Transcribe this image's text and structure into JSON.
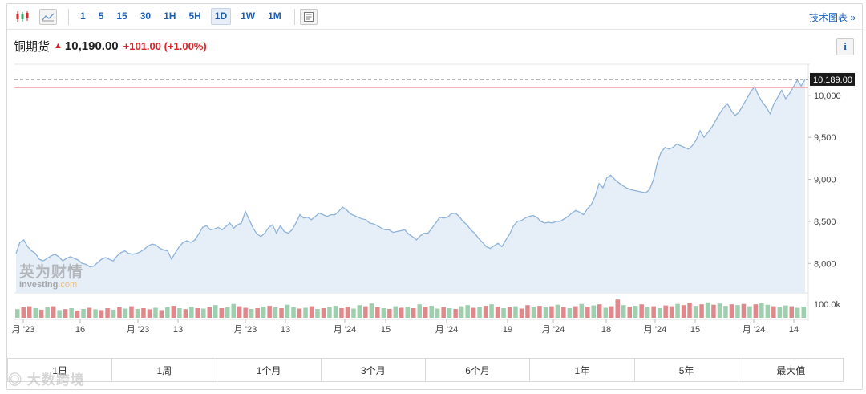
{
  "toolbar": {
    "chart_type_icons": [
      "candlestick-icon",
      "area-chart-icon"
    ],
    "periods": [
      "1",
      "5",
      "15",
      "30",
      "1H",
      "5H",
      "1D",
      "1W",
      "1M"
    ],
    "active_period": "1D",
    "doc_icon": "document-icon",
    "tech_chart_label": "技术图表 »"
  },
  "header": {
    "name": "铜期货",
    "price": "10,190.00",
    "change": "+101.00",
    "change_pct": "(+1.00%)",
    "direction_icon": "up-arrow-icon",
    "info_label": "i"
  },
  "watermark": {
    "cn": "英为财情",
    "en_main": "Investing",
    "en_suffix": ".com"
  },
  "ranges": [
    "1日",
    "1周",
    "1个月",
    "3个月",
    "6个月",
    "1年",
    "5年",
    "最大值"
  ],
  "corner_watermark": "大数跨境",
  "colors": {
    "line": "#8fb3d9",
    "area": "#e6eef8",
    "up_volume": "#e0898c",
    "down_volume": "#9ecfae",
    "last_price_box": "#1a1a1a",
    "accent": "#1b5fb5",
    "change": "#d8262b"
  },
  "chart_data": {
    "type": "area",
    "title": "",
    "y_axis": {
      "ticks": [
        "8,000",
        "8,500",
        "9,000",
        "9,500",
        "10,000"
      ],
      "tick_values": [
        8000,
        8500,
        9000,
        9500,
        10000
      ],
      "range": [
        7650,
        10370
      ],
      "position": "right"
    },
    "x_axis": {
      "labels": [
        "月 '23",
        "16",
        "月 '23",
        "13",
        "月 '23",
        "13",
        "月 '24",
        "15",
        "月 '24",
        "19",
        "月 '24",
        "18",
        "月 '24",
        "15",
        "月 '24",
        "14"
      ]
    },
    "last_price_label": "10,189.00",
    "last_price": 10189,
    "reference_line": 10090,
    "volume_label": "100.0k",
    "series": [
      {
        "values": [
          8120,
          8250,
          8280,
          8200,
          8150,
          8120,
          8050,
          8030,
          8060,
          8090,
          8110,
          8080,
          8030,
          8060,
          8080,
          8060,
          8040,
          8000,
          7990,
          7960,
          7970,
          8010,
          8050,
          8070,
          8050,
          8030,
          8090,
          8130,
          8150,
          8120,
          8110,
          8120,
          8140,
          8170,
          8210,
          8230,
          8220,
          8180,
          8160,
          8150,
          8050,
          8130,
          8200,
          8250,
          8270,
          8250,
          8280,
          8350,
          8430,
          8450,
          8400,
          8410,
          8430,
          8400,
          8440,
          8480,
          8420,
          8460,
          8480,
          8620,
          8520,
          8420,
          8350,
          8320,
          8360,
          8430,
          8460,
          8360,
          8450,
          8380,
          8360,
          8400,
          8480,
          8580,
          8540,
          8550,
          8520,
          8560,
          8600,
          8580,
          8560,
          8580,
          8580,
          8620,
          8670,
          8640,
          8590,
          8570,
          8550,
          8530,
          8520,
          8480,
          8470,
          8450,
          8420,
          8400,
          8400,
          8370,
          8380,
          8390,
          8400,
          8350,
          8320,
          8280,
          8330,
          8360,
          8360,
          8420,
          8480,
          8550,
          8540,
          8550,
          8590,
          8600,
          8560,
          8500,
          8460,
          8400,
          8360,
          8300,
          8250,
          8200,
          8180,
          8210,
          8240,
          8200,
          8280,
          8350,
          8450,
          8500,
          8510,
          8540,
          8560,
          8570,
          8550,
          8500,
          8480,
          8490,
          8480,
          8500,
          8500,
          8530,
          8560,
          8600,
          8630,
          8610,
          8580,
          8650,
          8700,
          8800,
          8950,
          8900,
          9020,
          9050,
          9000,
          8960,
          8930,
          8900,
          8880,
          8870,
          8860,
          8850,
          8840,
          8880,
          9000,
          9200,
          9330,
          9380,
          9360,
          9380,
          9420,
          9400,
          9380,
          9360,
          9400,
          9470,
          9580,
          9500,
          9560,
          9620,
          9700,
          9780,
          9850,
          9900,
          9820,
          9760,
          9800,
          9880,
          9960,
          10040,
          10100,
          10000,
          9920,
          9860,
          9780,
          9900,
          9980,
          10060,
          9960,
          10020,
          10100,
          10180,
          10110,
          10189
        ]
      }
    ],
    "volume": [
      {
        "v": 0.45,
        "up": false
      },
      {
        "v": 0.55,
        "up": true
      },
      {
        "v": 0.6,
        "up": true
      },
      {
        "v": 0.5,
        "up": false
      },
      {
        "v": 0.42,
        "up": true
      },
      {
        "v": 0.55,
        "up": false
      },
      {
        "v": 0.6,
        "up": true
      },
      {
        "v": 0.4,
        "up": false
      },
      {
        "v": 0.45,
        "up": true
      },
      {
        "v": 0.5,
        "up": false
      },
      {
        "v": 0.38,
        "up": true
      },
      {
        "v": 0.46,
        "up": false
      },
      {
        "v": 0.52,
        "up": true
      },
      {
        "v": 0.44,
        "up": false
      },
      {
        "v": 0.4,
        "up": true
      },
      {
        "v": 0.5,
        "up": true
      },
      {
        "v": 0.42,
        "up": false
      },
      {
        "v": 0.55,
        "up": true
      },
      {
        "v": 0.48,
        "up": false
      },
      {
        "v": 0.6,
        "up": true
      },
      {
        "v": 0.46,
        "up": false
      },
      {
        "v": 0.5,
        "up": true
      },
      {
        "v": 0.44,
        "up": true
      },
      {
        "v": 0.52,
        "up": false
      },
      {
        "v": 0.4,
        "up": true
      },
      {
        "v": 0.55,
        "up": false
      },
      {
        "v": 0.62,
        "up": true
      },
      {
        "v": 0.5,
        "up": false
      },
      {
        "v": 0.45,
        "up": true
      },
      {
        "v": 0.58,
        "up": false
      },
      {
        "v": 0.5,
        "up": true
      },
      {
        "v": 0.48,
        "up": false
      },
      {
        "v": 0.56,
        "up": true
      },
      {
        "v": 0.66,
        "up": false
      },
      {
        "v": 0.5,
        "up": true
      },
      {
        "v": 0.55,
        "up": false
      },
      {
        "v": 0.72,
        "up": false
      },
      {
        "v": 0.6,
        "up": true
      },
      {
        "v": 0.52,
        "up": true
      },
      {
        "v": 0.46,
        "up": false
      },
      {
        "v": 0.5,
        "up": true
      },
      {
        "v": 0.58,
        "up": false
      },
      {
        "v": 0.62,
        "up": true
      },
      {
        "v": 0.54,
        "up": false
      },
      {
        "v": 0.5,
        "up": true
      },
      {
        "v": 0.68,
        "up": false
      },
      {
        "v": 0.56,
        "up": false
      },
      {
        "v": 0.48,
        "up": true
      },
      {
        "v": 0.52,
        "up": false
      },
      {
        "v": 0.6,
        "up": true
      },
      {
        "v": 0.46,
        "up": false
      },
      {
        "v": 0.5,
        "up": true
      },
      {
        "v": 0.55,
        "up": false
      },
      {
        "v": 0.62,
        "up": false
      },
      {
        "v": 0.5,
        "up": true
      },
      {
        "v": 0.58,
        "up": true
      },
      {
        "v": 0.48,
        "up": false
      },
      {
        "v": 0.66,
        "up": false
      },
      {
        "v": 0.6,
        "up": true
      },
      {
        "v": 0.74,
        "up": false
      },
      {
        "v": 0.55,
        "up": true
      },
      {
        "v": 0.5,
        "up": false
      },
      {
        "v": 0.46,
        "up": true
      },
      {
        "v": 0.6,
        "up": false
      },
      {
        "v": 0.52,
        "up": true
      },
      {
        "v": 0.56,
        "up": false
      },
      {
        "v": 0.5,
        "up": true
      },
      {
        "v": 0.7,
        "up": false
      },
      {
        "v": 0.58,
        "up": true
      },
      {
        "v": 0.62,
        "up": false
      },
      {
        "v": 0.48,
        "up": false
      },
      {
        "v": 0.56,
        "up": true
      },
      {
        "v": 0.5,
        "up": false
      },
      {
        "v": 0.46,
        "up": true
      },
      {
        "v": 0.6,
        "up": false
      },
      {
        "v": 0.66,
        "up": false
      },
      {
        "v": 0.52,
        "up": true
      },
      {
        "v": 0.56,
        "up": false
      },
      {
        "v": 0.62,
        "up": true
      },
      {
        "v": 0.7,
        "up": false
      },
      {
        "v": 0.58,
        "up": true
      },
      {
        "v": 0.5,
        "up": false
      },
      {
        "v": 0.55,
        "up": true
      },
      {
        "v": 0.6,
        "up": false
      },
      {
        "v": 0.48,
        "up": true
      },
      {
        "v": 0.66,
        "up": true
      },
      {
        "v": 0.58,
        "up": false
      },
      {
        "v": 0.62,
        "up": true
      },
      {
        "v": 0.54,
        "up": false
      },
      {
        "v": 0.6,
        "up": true
      },
      {
        "v": 0.68,
        "up": false
      },
      {
        "v": 0.56,
        "up": true
      },
      {
        "v": 0.5,
        "up": false
      },
      {
        "v": 0.6,
        "up": true
      },
      {
        "v": 0.72,
        "up": false
      },
      {
        "v": 0.58,
        "up": true
      },
      {
        "v": 0.64,
        "up": false
      },
      {
        "v": 0.7,
        "up": true
      },
      {
        "v": 0.52,
        "up": false
      },
      {
        "v": 0.6,
        "up": true
      },
      {
        "v": 0.95,
        "up": true
      },
      {
        "v": 0.66,
        "up": false
      },
      {
        "v": 0.58,
        "up": true
      },
      {
        "v": 0.62,
        "up": false
      },
      {
        "v": 0.7,
        "up": true
      },
      {
        "v": 0.55,
        "up": false
      },
      {
        "v": 0.6,
        "up": true
      },
      {
        "v": 0.5,
        "up": false
      },
      {
        "v": 0.64,
        "up": true
      },
      {
        "v": 0.6,
        "up": true
      },
      {
        "v": 0.72,
        "up": false
      },
      {
        "v": 0.66,
        "up": true
      },
      {
        "v": 0.78,
        "up": true
      },
      {
        "v": 0.62,
        "up": false
      },
      {
        "v": 0.7,
        "up": true
      },
      {
        "v": 0.8,
        "up": false
      },
      {
        "v": 0.68,
        "up": true
      },
      {
        "v": 0.74,
        "up": false
      },
      {
        "v": 0.62,
        "up": false
      },
      {
        "v": 0.7,
        "up": true
      },
      {
        "v": 0.66,
        "up": false
      },
      {
        "v": 0.72,
        "up": true
      },
      {
        "v": 0.6,
        "up": false
      },
      {
        "v": 0.7,
        "up": true
      },
      {
        "v": 0.76,
        "up": false
      },
      {
        "v": 0.68,
        "up": false
      },
      {
        "v": 0.6,
        "up": true
      },
      {
        "v": 0.56,
        "up": false
      },
      {
        "v": 0.64,
        "up": false
      },
      {
        "v": 0.6,
        "up": true
      },
      {
        "v": 0.52,
        "up": false
      },
      {
        "v": 0.58,
        "up": false
      }
    ]
  }
}
